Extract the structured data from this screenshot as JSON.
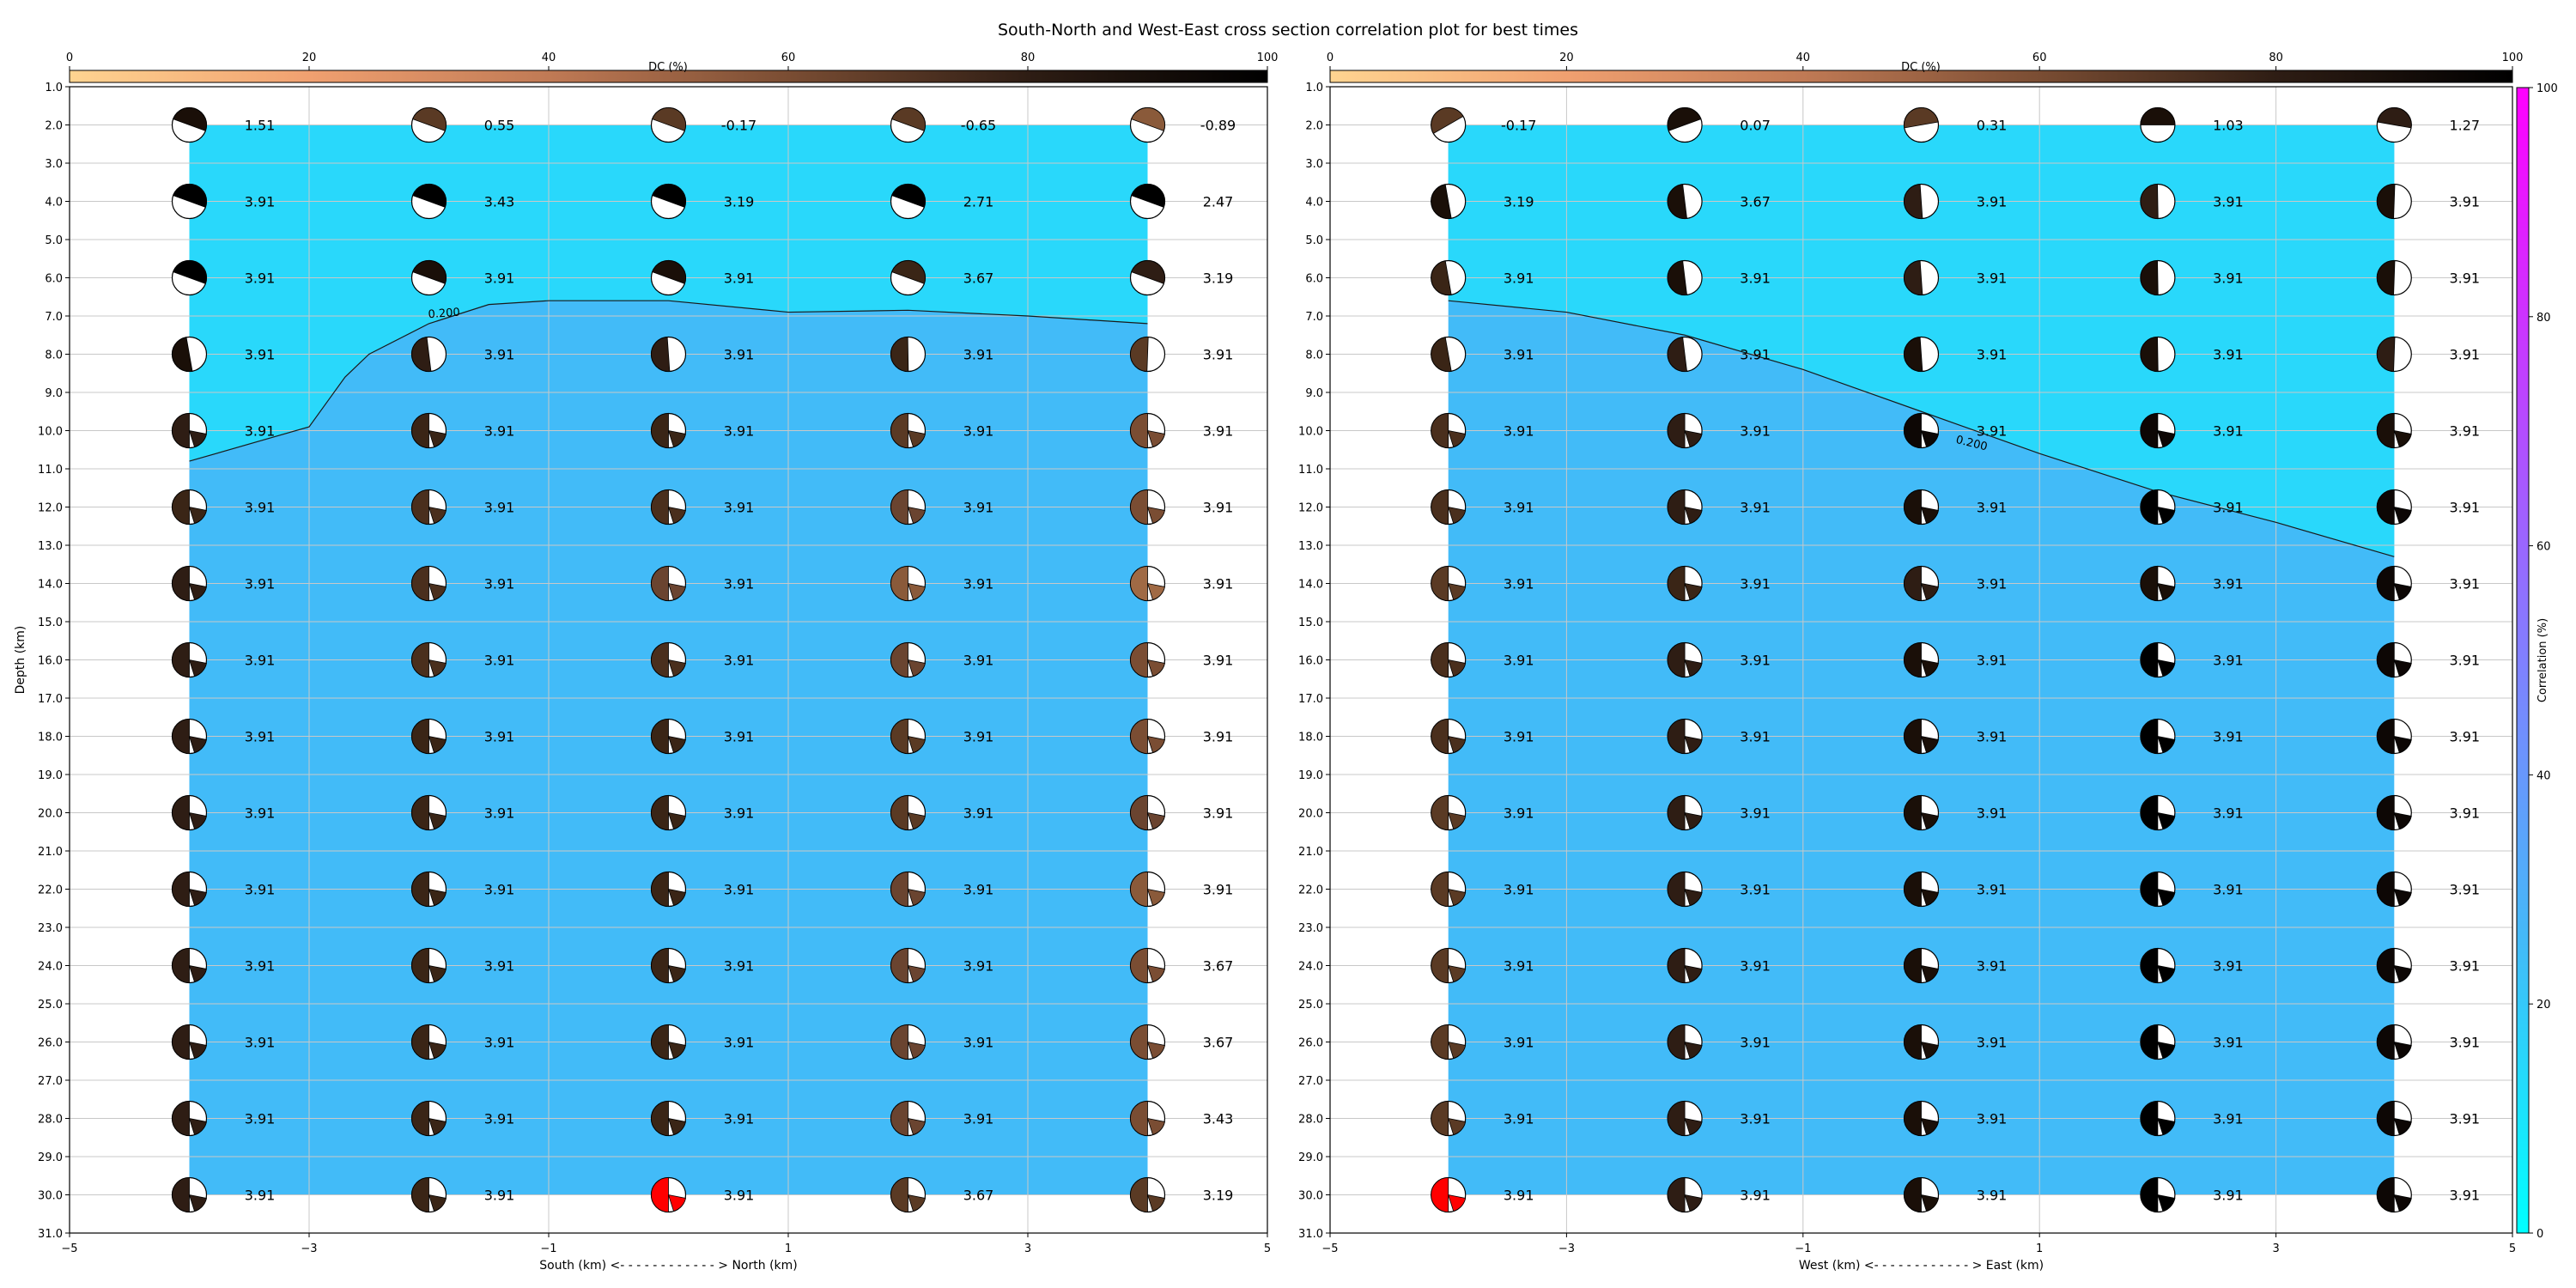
{
  "title": "South-North and West-East cross section correlation plot for best times",
  "colors": {
    "upper_region": "#29d8fb",
    "lower_region": "#42bbf8",
    "grid": "#c8c8c8",
    "highlight_beachball": "#ff0000",
    "dc_colormap": [
      "#ffd491",
      "#f0a070",
      "#c07a55",
      "#7a4d33",
      "#2e1d14",
      "#000000"
    ],
    "correlation_colormap": [
      "#00ffff",
      "#42bbf8",
      "#8080ff",
      "#c040ff",
      "#ff00ff"
    ]
  },
  "dc_colorbar": {
    "label": "DC (%)",
    "range": [
      0,
      100
    ],
    "ticks": [
      "0",
      "20",
      "40",
      "60",
      "80",
      "100"
    ]
  },
  "correlation_colorbar": {
    "label": "Correlation (%)",
    "range": [
      0,
      100
    ],
    "ticks": [
      "0",
      "20",
      "40",
      "60",
      "80",
      "100"
    ]
  },
  "chart_data": [
    {
      "type": "heatmap",
      "xlabel": "South (km) <- - - - - - - - - - - - > North (km)",
      "ylabel": "Depth (km)",
      "xlim": [
        -5,
        5
      ],
      "ylim": [
        31,
        1
      ],
      "xticks": [
        -5,
        -3,
        -1,
        1,
        3,
        5
      ],
      "yticks": [
        1,
        2,
        3,
        4,
        5,
        6,
        7,
        8,
        9,
        10,
        11,
        12,
        13,
        14,
        15,
        16,
        17,
        18,
        19,
        20,
        21,
        22,
        23,
        24,
        25,
        26,
        27,
        28,
        29,
        30,
        31
      ],
      "grid": true,
      "region": {
        "x": [
          -4,
          4
        ],
        "depth": [
          2,
          30
        ]
      },
      "columns_x": [
        -4,
        -2,
        0,
        2,
        4
      ],
      "depths": [
        2,
        4,
        6,
        8,
        10,
        12,
        14,
        16,
        18,
        20,
        22,
        24,
        26,
        28,
        30
      ],
      "contour": {
        "level_label": "0.200",
        "points": [
          [
            -4,
            10.8
          ],
          [
            -3,
            9.9
          ],
          [
            -2.7,
            8.6
          ],
          [
            -2.5,
            8.0
          ],
          [
            -2,
            7.2
          ],
          [
            -1.5,
            6.7
          ],
          [
            -1,
            6.6
          ],
          [
            0,
            6.6
          ],
          [
            1,
            6.9
          ],
          [
            2,
            6.85
          ],
          [
            3,
            7.0
          ],
          [
            4,
            7.2
          ]
        ]
      },
      "values": [
        [
          "1.51",
          "0.55",
          "-0.17",
          "-0.65",
          "-0.89"
        ],
        [
          "3.91",
          "3.43",
          "3.19",
          "2.71",
          "2.47"
        ],
        [
          "3.91",
          "3.91",
          "3.91",
          "3.67",
          "3.19"
        ],
        [
          "3.91",
          "3.91",
          "3.91",
          "3.91",
          "3.91"
        ],
        [
          "3.91",
          "3.91",
          "3.91",
          "3.91",
          "3.91"
        ],
        [
          "3.91",
          "3.91",
          "3.91",
          "3.91",
          "3.91"
        ],
        [
          "3.91",
          "3.91",
          "3.91",
          "3.91",
          "3.91"
        ],
        [
          "3.91",
          "3.91",
          "3.91",
          "3.91",
          "3.91"
        ],
        [
          "3.91",
          "3.91",
          "3.91",
          "3.91",
          "3.91"
        ],
        [
          "3.91",
          "3.91",
          "3.91",
          "3.91",
          "3.91"
        ],
        [
          "3.91",
          "3.91",
          "3.91",
          "3.91",
          "3.91"
        ],
        [
          "3.91",
          "3.91",
          "3.91",
          "3.91",
          "3.67"
        ],
        [
          "3.91",
          "3.91",
          "3.91",
          "3.91",
          "3.67"
        ],
        [
          "3.91",
          "3.91",
          "3.91",
          "3.91",
          "3.43"
        ],
        [
          "3.91",
          "3.91",
          "3.91",
          "3.67",
          "3.19"
        ]
      ],
      "beachball_colors": [
        [
          "#1a0f08",
          "#5a3a24",
          "#5a3a24",
          "#5a3a24",
          "#8a5a3a"
        ],
        [
          "#000000",
          "#000000",
          "#000000",
          "#000000",
          "#000000"
        ],
        [
          "#000000",
          "#1a0f08",
          "#1a0f08",
          "#3a2516",
          "#2e1d14"
        ],
        [
          "#1a0f08",
          "#2e1d14",
          "#2e1d14",
          "#3a2516",
          "#5a3a24"
        ],
        [
          "#2e1d14",
          "#3a2516",
          "#3a2516",
          "#5a3a24",
          "#7a4d33"
        ],
        [
          "#3a2516",
          "#4a2f1d",
          "#4a2f1d",
          "#6a4430",
          "#7a4d33"
        ],
        [
          "#2e1d14",
          "#4a2f1d",
          "#6a4430",
          "#8a5a3a",
          "#a06a45"
        ],
        [
          "#2e1d14",
          "#4a2f1d",
          "#4a2f1d",
          "#6a4430",
          "#7a4d33"
        ],
        [
          "#2e1d14",
          "#3a2516",
          "#3a2516",
          "#5a3a24",
          "#7a4d33"
        ],
        [
          "#2e1d14",
          "#3a2516",
          "#3a2516",
          "#5a3a24",
          "#6a4430"
        ],
        [
          "#2e1d14",
          "#3a2516",
          "#3a2516",
          "#6a4430",
          "#8a5a3a"
        ],
        [
          "#2e1d14",
          "#3a2516",
          "#3a2516",
          "#6a4430",
          "#7a4d33"
        ],
        [
          "#2e1d14",
          "#3a2516",
          "#3a2516",
          "#6a4430",
          "#7a4d33"
        ],
        [
          "#2e1d14",
          "#3a2516",
          "#3a2516",
          "#6a4430",
          "#7a4d33"
        ],
        [
          "#2e1d14",
          "#3a2516",
          "#ff0000",
          "#5a3a24",
          "#5a3a24"
        ]
      ],
      "highlight": {
        "row": 14,
        "col": 2
      }
    },
    {
      "type": "heatmap",
      "xlabel": "West (km) <- - - - - - - - - - - - > East (km)",
      "ylabel": "",
      "xlim": [
        -5,
        5
      ],
      "ylim": [
        31,
        1
      ],
      "xticks": [
        -5,
        -3,
        -1,
        1,
        3,
        5
      ],
      "yticks": [
        1,
        2,
        3,
        4,
        5,
        6,
        7,
        8,
        9,
        10,
        11,
        12,
        13,
        14,
        15,
        16,
        17,
        18,
        19,
        20,
        21,
        22,
        23,
        24,
        25,
        26,
        27,
        28,
        29,
        30,
        31
      ],
      "grid": true,
      "region": {
        "x": [
          -4,
          4
        ],
        "depth": [
          2,
          30
        ]
      },
      "columns_x": [
        -4,
        -2,
        0,
        2,
        4
      ],
      "depths": [
        2,
        4,
        6,
        8,
        10,
        12,
        14,
        16,
        18,
        20,
        22,
        24,
        26,
        28,
        30
      ],
      "contour": {
        "level_label": "0.200",
        "points": [
          [
            -4,
            6.6
          ],
          [
            -3,
            6.9
          ],
          [
            -2,
            7.5
          ],
          [
            -1,
            8.4
          ],
          [
            0,
            9.5
          ],
          [
            1,
            10.6
          ],
          [
            2,
            11.6
          ],
          [
            3,
            12.4
          ],
          [
            4,
            13.3
          ]
        ]
      },
      "values": [
        [
          "-0.17",
          "0.07",
          "0.31",
          "1.03",
          "1.27"
        ],
        [
          "3.19",
          "3.67",
          "3.91",
          "3.91",
          "3.91"
        ],
        [
          "3.91",
          "3.91",
          "3.91",
          "3.91",
          "3.91"
        ],
        [
          "3.91",
          "3.91",
          "3.91",
          "3.91",
          "3.91"
        ],
        [
          "3.91",
          "3.91",
          "3.91",
          "3.91",
          "3.91"
        ],
        [
          "3.91",
          "3.91",
          "3.91",
          "3.91",
          "3.91"
        ],
        [
          "3.91",
          "3.91",
          "3.91",
          "3.91",
          "3.91"
        ],
        [
          "3.91",
          "3.91",
          "3.91",
          "3.91",
          "3.91"
        ],
        [
          "3.91",
          "3.91",
          "3.91",
          "3.91",
          "3.91"
        ],
        [
          "3.91",
          "3.91",
          "3.91",
          "3.91",
          "3.91"
        ],
        [
          "3.91",
          "3.91",
          "3.91",
          "3.91",
          "3.91"
        ],
        [
          "3.91",
          "3.91",
          "3.91",
          "3.91",
          "3.91"
        ],
        [
          "3.91",
          "3.91",
          "3.91",
          "3.91",
          "3.91"
        ],
        [
          "3.91",
          "3.91",
          "3.91",
          "3.91",
          "3.91"
        ],
        [
          "3.91",
          "3.91",
          "3.91",
          "3.91",
          "3.91"
        ]
      ],
      "beachball_colors": [
        [
          "#5a3a24",
          "#1a0f08",
          "#5a3a24",
          "#1a0f08",
          "#2e1d14"
        ],
        [
          "#1a0f08",
          "#1a0f08",
          "#2e1d14",
          "#2e1d14",
          "#1a0f08"
        ],
        [
          "#3a2516",
          "#1a0f08",
          "#2e1d14",
          "#1a0f08",
          "#1a0f08"
        ],
        [
          "#3a2516",
          "#2e1d14",
          "#1a0f08",
          "#1a0f08",
          "#2e1d14"
        ],
        [
          "#4a2f1d",
          "#2e1d14",
          "#0d0705",
          "#0d0705",
          "#1a0f08"
        ],
        [
          "#4a2f1d",
          "#2e1d14",
          "#1a0f08",
          "#000000",
          "#0d0705"
        ],
        [
          "#5a3a24",
          "#3a2516",
          "#2e1d14",
          "#1a0f08",
          "#0d0705"
        ],
        [
          "#4a2f1d",
          "#2e1d14",
          "#1a0f08",
          "#000000",
          "#0d0705"
        ],
        [
          "#4a2f1d",
          "#2e1d14",
          "#1a0f08",
          "#000000",
          "#0d0705"
        ],
        [
          "#5a3a24",
          "#2e1d14",
          "#1a0f08",
          "#000000",
          "#0d0705"
        ],
        [
          "#5a3a24",
          "#2e1d14",
          "#1a0f08",
          "#000000",
          "#0d0705"
        ],
        [
          "#5a3a24",
          "#2e1d14",
          "#1a0f08",
          "#000000",
          "#0d0705"
        ],
        [
          "#5a3a24",
          "#2e1d14",
          "#1a0f08",
          "#000000",
          "#0d0705"
        ],
        [
          "#5a3a24",
          "#2e1d14",
          "#1a0f08",
          "#000000",
          "#0d0705"
        ],
        [
          "#ff0000",
          "#2e1d14",
          "#1a0f08",
          "#000000",
          "#0d0705"
        ]
      ],
      "highlight": {
        "row": 14,
        "col": 0
      }
    }
  ]
}
